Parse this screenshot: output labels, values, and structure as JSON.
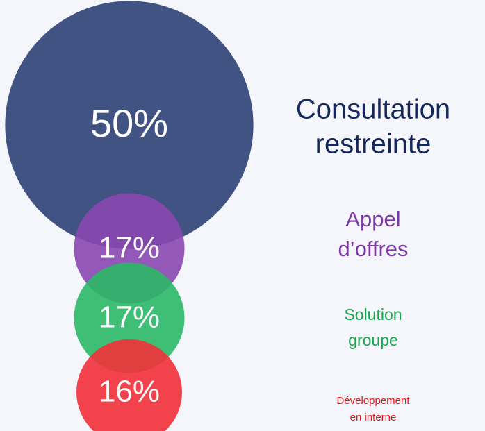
{
  "chart_data": {
    "type": "bubble",
    "categories": [
      [
        "Consultation",
        "restreinte"
      ],
      [
        "Appel",
        "d’offres"
      ],
      [
        "Solution",
        "groupe"
      ],
      [
        "Développement",
        "en interne"
      ]
    ],
    "values": [
      50,
      17,
      17,
      16
    ],
    "value_labels": [
      "50%",
      "17%",
      "17%",
      "16%"
    ],
    "colors": [
      "#2c4175",
      "#8a47b0",
      "#2bb866",
      "#f2303a"
    ],
    "label_colors": [
      "#14265a",
      "#7d38a6",
      "#17a64c",
      "#e31414"
    ]
  }
}
